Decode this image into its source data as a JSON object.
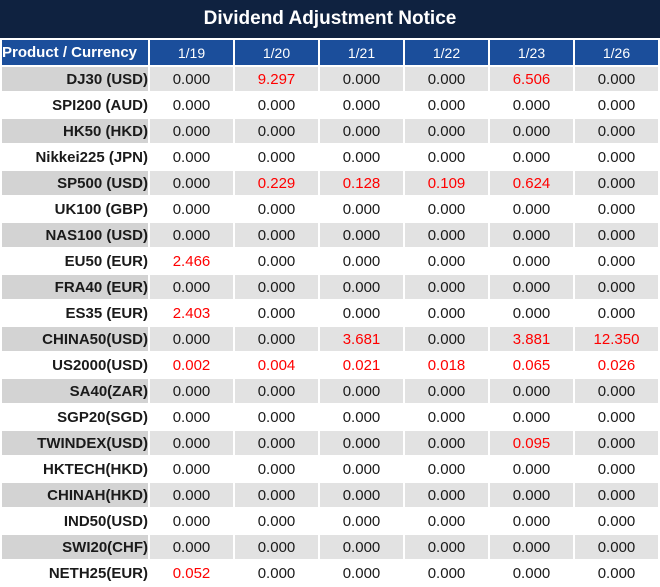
{
  "title": "Dividend Adjustment Notice",
  "colors": {
    "title_bar_bg": "#0f2240",
    "header_bg": "#1b4e9b",
    "header_text": "#ffffff",
    "row_gray_label_bg": "#d3d3d3",
    "row_gray_value_bg": "#e2e2e2",
    "row_white_bg": "#ffffff",
    "separator": "#ffffff",
    "value_text": "#1a1a1a",
    "highlight_value_text": "#ff0000"
  },
  "chart_data": {
    "type": "table",
    "title": "Dividend Adjustment Notice",
    "columns": [
      "Product / Currency",
      "1/19",
      "1/20",
      "1/21",
      "1/22",
      "1/23",
      "1/26"
    ],
    "rows": [
      [
        "DJ30 (USD)",
        "0.000",
        "9.297",
        "0.000",
        "0.000",
        "6.506",
        "0.000"
      ],
      [
        "SPI200 (AUD)",
        "0.000",
        "0.000",
        "0.000",
        "0.000",
        "0.000",
        "0.000"
      ],
      [
        "HK50 (HKD)",
        "0.000",
        "0.000",
        "0.000",
        "0.000",
        "0.000",
        "0.000"
      ],
      [
        "Nikkei225 (JPN)",
        "0.000",
        "0.000",
        "0.000",
        "0.000",
        "0.000",
        "0.000"
      ],
      [
        "SP500 (USD)",
        "0.000",
        "0.229",
        "0.128",
        "0.109",
        "0.624",
        "0.000"
      ],
      [
        "UK100 (GBP)",
        "0.000",
        "0.000",
        "0.000",
        "0.000",
        "0.000",
        "0.000"
      ],
      [
        "NAS100 (USD)",
        "0.000",
        "0.000",
        "0.000",
        "0.000",
        "0.000",
        "0.000"
      ],
      [
        "EU50 (EUR)",
        "2.466",
        "0.000",
        "0.000",
        "0.000",
        "0.000",
        "0.000"
      ],
      [
        "FRA40 (EUR)",
        "0.000",
        "0.000",
        "0.000",
        "0.000",
        "0.000",
        "0.000"
      ],
      [
        "ES35 (EUR)",
        "2.403",
        "0.000",
        "0.000",
        "0.000",
        "0.000",
        "0.000"
      ],
      [
        "CHINA50(USD)",
        "0.000",
        "0.000",
        "3.681",
        "0.000",
        "3.881",
        "12.350"
      ],
      [
        "US2000(USD)",
        "0.002",
        "0.004",
        "0.021",
        "0.018",
        "0.065",
        "0.026"
      ],
      [
        "SA40(ZAR)",
        "0.000",
        "0.000",
        "0.000",
        "0.000",
        "0.000",
        "0.000"
      ],
      [
        "SGP20(SGD)",
        "0.000",
        "0.000",
        "0.000",
        "0.000",
        "0.000",
        "0.000"
      ],
      [
        "TWINDEX(USD)",
        "0.000",
        "0.000",
        "0.000",
        "0.000",
        "0.095",
        "0.000"
      ],
      [
        "HKTECH(HKD)",
        "0.000",
        "0.000",
        "0.000",
        "0.000",
        "0.000",
        "0.000"
      ],
      [
        "CHINAH(HKD)",
        "0.000",
        "0.000",
        "0.000",
        "0.000",
        "0.000",
        "0.000"
      ],
      [
        "IND50(USD)",
        "0.000",
        "0.000",
        "0.000",
        "0.000",
        "0.000",
        "0.000"
      ],
      [
        "SWI20(CHF)",
        "0.000",
        "0.000",
        "0.000",
        "0.000",
        "0.000",
        "0.000"
      ],
      [
        "NETH25(EUR)",
        "0.052",
        "0.000",
        "0.000",
        "0.000",
        "0.000",
        "0.000"
      ]
    ],
    "highlight_rule": "non-zero values rendered in red",
    "layout": {
      "first_row_shade": "gray",
      "row_shading": "alternating gray/white"
    }
  }
}
